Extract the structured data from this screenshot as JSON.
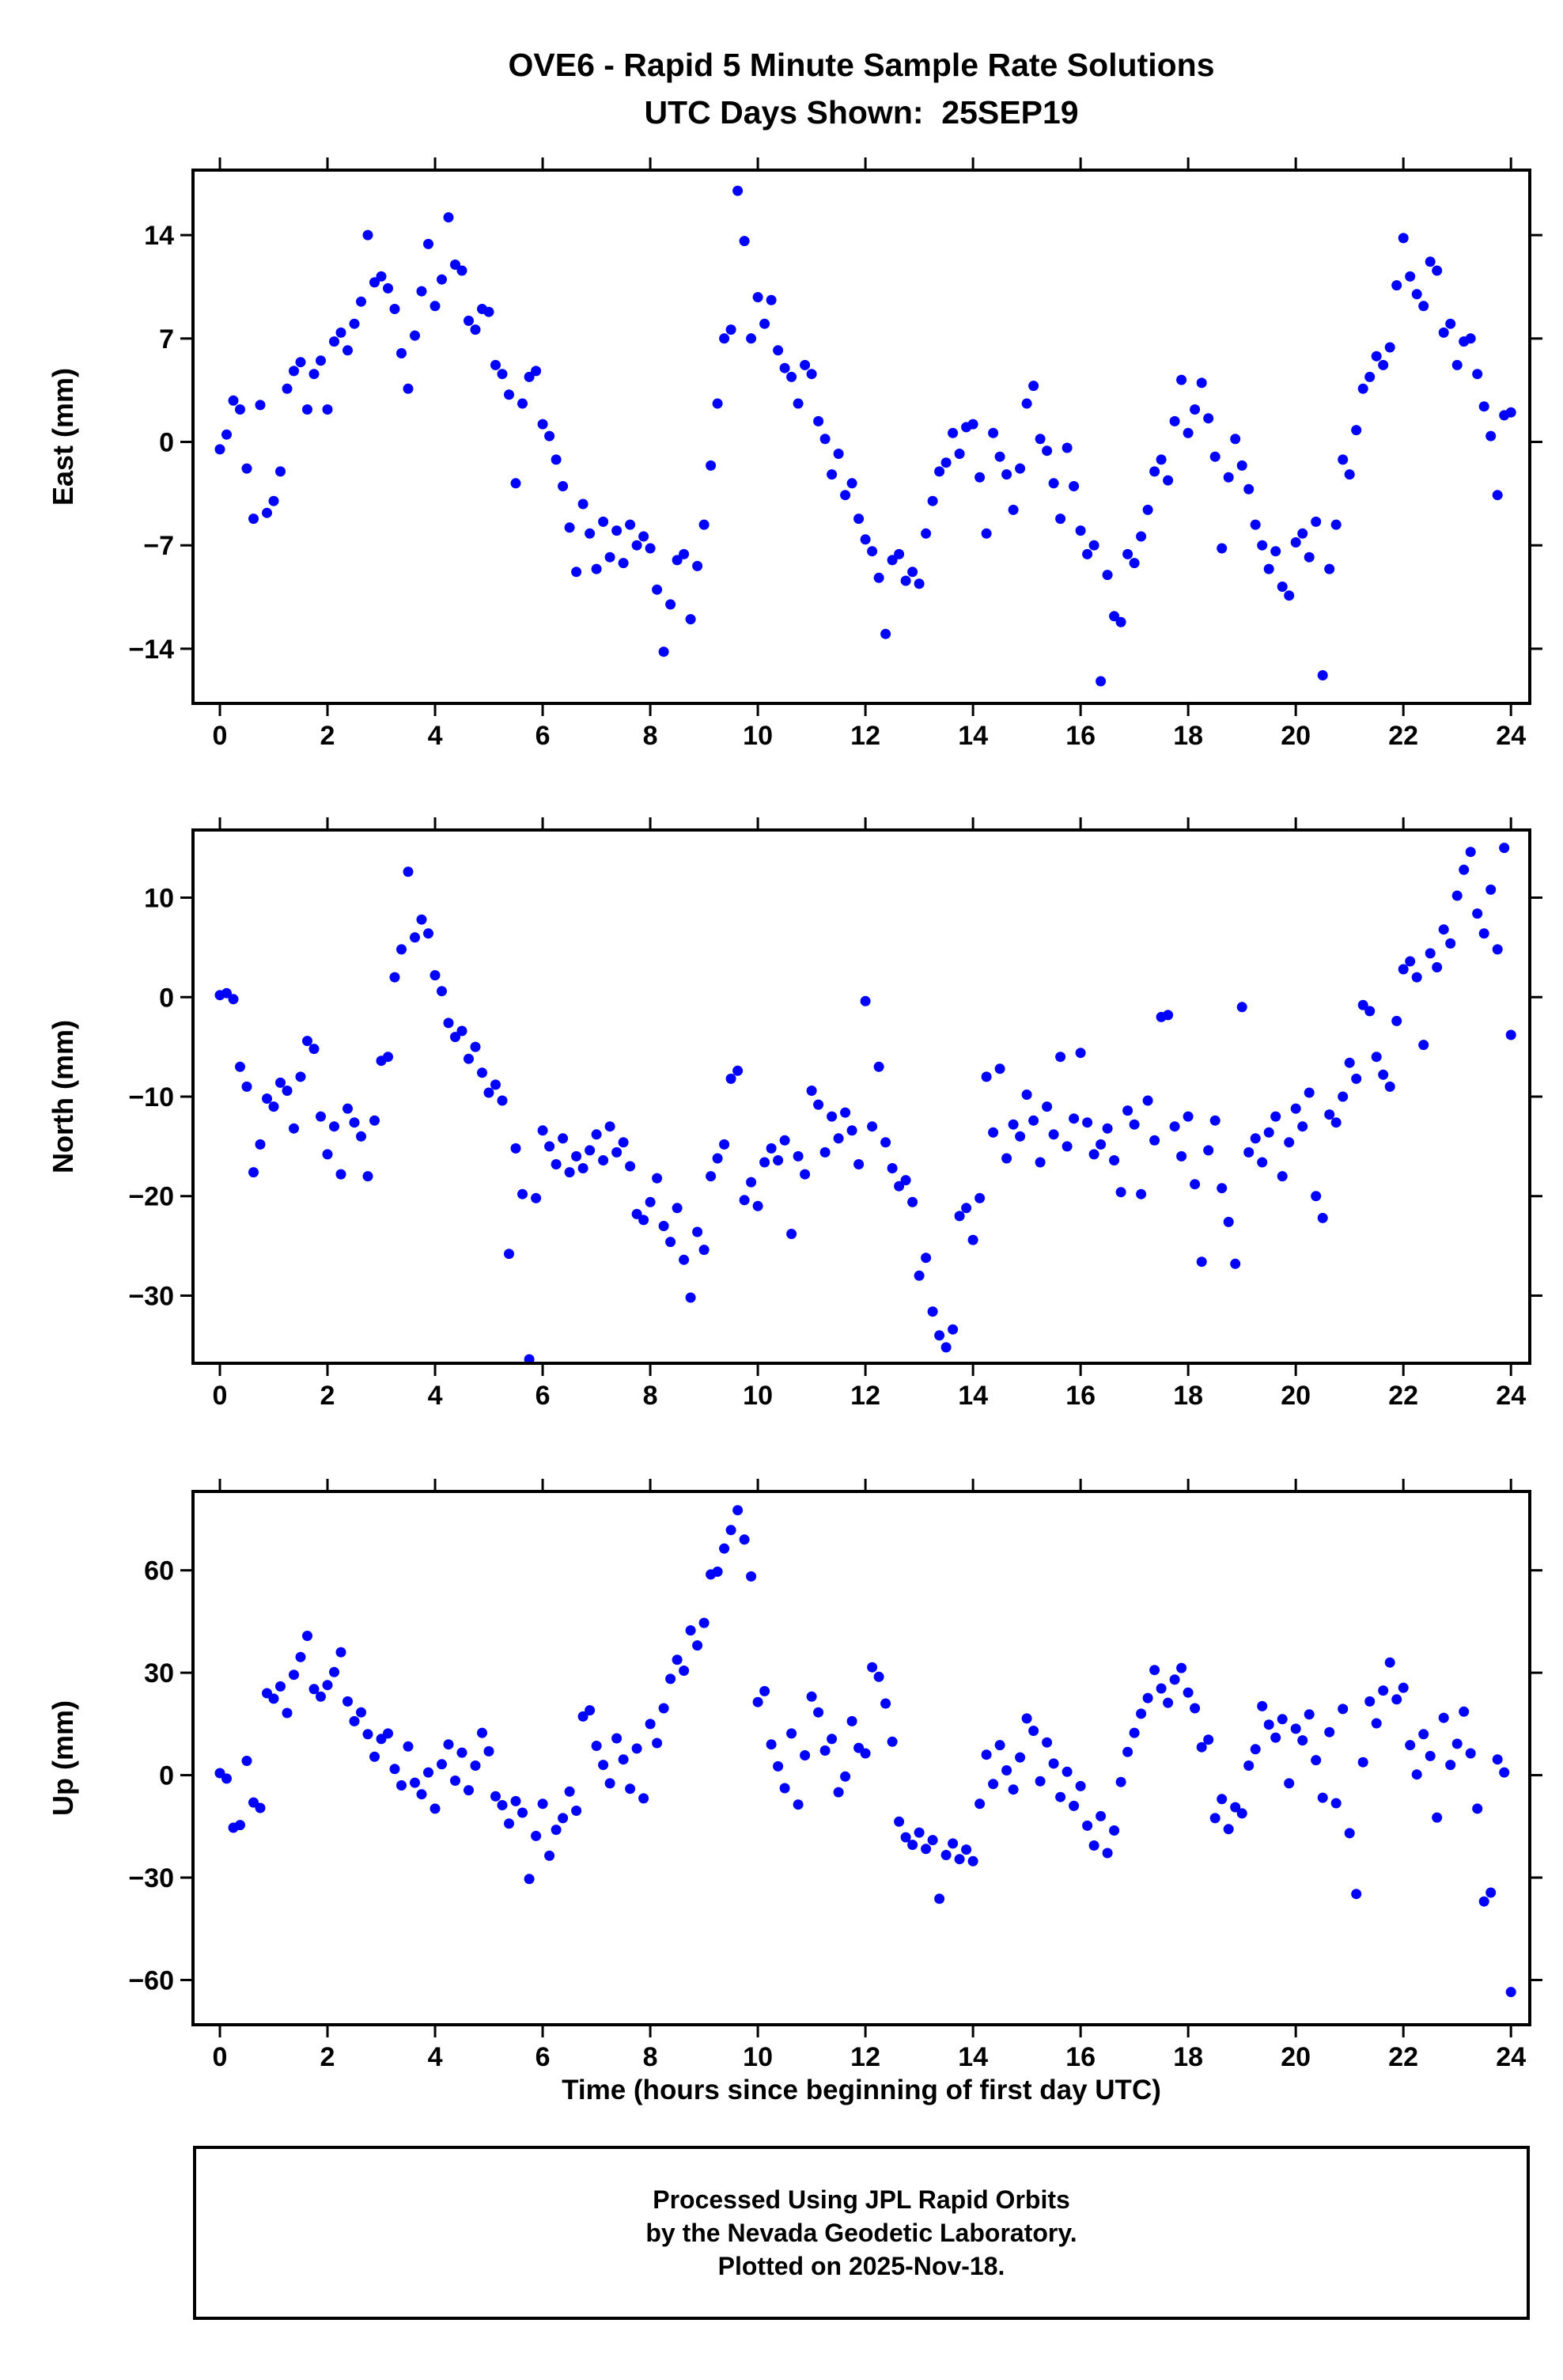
{
  "title_line1": "OVE6 - Rapid 5 Minute Sample Rate Solutions",
  "title_line2": "UTC Days Shown:  25SEP19",
  "xlabel": "Time (hours since beginning of first day UTC)",
  "footer": {
    "line1": "Processed Using JPL Rapid Orbits",
    "line2": "by the Nevada Geodetic Laboratory.",
    "line3": "Plotted on 2025-Nov-18."
  },
  "marker_color": "#0000ff",
  "chart_data": [
    {
      "type": "scatter",
      "id": "east",
      "ylabel": "East (mm)",
      "x_start": 0,
      "x_step": 0.125,
      "xlim": [
        -0.5,
        24.35
      ],
      "ylim": [
        -17.7,
        18.4
      ],
      "x_ticks": [
        0,
        2,
        4,
        6,
        8,
        10,
        12,
        14,
        16,
        18,
        20,
        22,
        24
      ],
      "y_ticks": [
        -14,
        -7,
        0,
        7,
        14
      ],
      "values": [
        -0.5,
        0.5,
        2.8,
        2.2,
        -1.8,
        -5.2,
        2.5,
        -4.8,
        -4.0,
        -2.0,
        3.6,
        4.8,
        5.4,
        2.2,
        4.6,
        5.5,
        2.2,
        6.8,
        7.4,
        6.2,
        8.0,
        9.5,
        14.0,
        10.8,
        11.2,
        10.4,
        9.0,
        6.0,
        3.6,
        7.2,
        10.2,
        13.4,
        9.2,
        11.0,
        15.2,
        12.0,
        11.6,
        8.2,
        7.6,
        9.0,
        8.8,
        5.2,
        4.6,
        3.2,
        -2.8,
        2.6,
        4.4,
        4.8,
        1.2,
        0.4,
        -1.2,
        -3.0,
        -5.8,
        -8.8,
        -4.2,
        -6.2,
        -8.6,
        -5.4,
        -7.8,
        -6.0,
        -8.2,
        -5.6,
        -7.0,
        -6.4,
        -7.2,
        -10.0,
        -14.2,
        -11.0,
        -8.0,
        -7.6,
        -12.0,
        -8.4,
        -5.6,
        -1.6,
        2.6,
        7.0,
        7.6,
        17.0,
        13.6,
        7.0,
        9.8,
        8.0,
        9.6,
        6.2,
        5.0,
        4.4,
        2.6,
        5.2,
        4.6,
        1.4,
        0.2,
        -2.2,
        -0.8,
        -3.6,
        -2.8,
        -5.2,
        -6.6,
        -7.4,
        -9.2,
        -13.0,
        -8.0,
        -7.6,
        -9.4,
        -8.8,
        -9.6,
        -6.2,
        -4.0,
        -2.0,
        -1.4,
        0.6,
        -0.8,
        1.0,
        1.2,
        -2.4,
        -6.2,
        0.6,
        -1.0,
        -2.2,
        -4.6,
        -1.8,
        2.6,
        3.8,
        0.2,
        -0.6,
        -2.8,
        -5.2,
        -0.4,
        -3.0,
        -6.0,
        -7.6,
        -7.0,
        -16.2,
        -9.0,
        -11.8,
        -12.2,
        -7.6,
        -8.2,
        -6.4,
        -4.6,
        -2.0,
        -1.2,
        -2.6,
        1.4,
        4.2,
        0.6,
        2.2,
        4.0,
        1.6,
        -1.0,
        -7.2,
        -2.4,
        0.2,
        -1.6,
        -3.2,
        -5.6,
        -7.0,
        -8.6,
        -7.4,
        -9.8,
        -10.4,
        -6.8,
        -6.2,
        -7.8,
        -5.4,
        -15.8,
        -8.6,
        -5.6,
        -1.2,
        -2.2,
        0.8,
        3.6,
        4.4,
        5.8,
        5.2,
        6.4,
        10.6,
        13.8,
        11.2,
        10.0,
        9.2,
        12.2,
        11.6,
        7.4,
        8.0,
        5.2,
        6.8,
        7.0,
        4.6,
        2.4,
        0.4,
        -3.6,
        1.8,
        2.0
      ]
    },
    {
      "type": "scatter",
      "id": "north",
      "ylabel": "North (mm)",
      "x_start": 0,
      "x_step": 0.125,
      "xlim": [
        -0.5,
        24.35
      ],
      "ylim": [
        -36.8,
        16.8
      ],
      "x_ticks": [
        0,
        2,
        4,
        6,
        8,
        10,
        12,
        14,
        16,
        18,
        20,
        22,
        24
      ],
      "y_ticks": [
        -30,
        -20,
        -10,
        0,
        10
      ],
      "values": [
        0.2,
        0.4,
        -0.2,
        -7.0,
        -9.0,
        -17.6,
        -14.8,
        -10.2,
        -11.0,
        -8.6,
        -9.4,
        -13.2,
        -8.0,
        -4.4,
        -5.2,
        -12.0,
        -15.8,
        -13.0,
        -17.8,
        -11.2,
        -12.6,
        -14.0,
        -18.0,
        -12.4,
        -6.4,
        -6.0,
        2.0,
        4.8,
        12.6,
        6.0,
        7.8,
        6.4,
        2.2,
        0.6,
        -2.6,
        -4.0,
        -3.4,
        -6.2,
        -5.0,
        -7.6,
        -9.6,
        -8.8,
        -10.4,
        -25.8,
        -15.2,
        -19.8,
        -36.4,
        -20.2,
        -13.4,
        -15.0,
        -16.8,
        -14.2,
        -17.6,
        -16.0,
        -17.2,
        -15.4,
        -13.8,
        -16.4,
        -13.0,
        -15.6,
        -14.6,
        -17.0,
        -21.8,
        -22.4,
        -20.6,
        -18.2,
        -23.0,
        -24.6,
        -21.2,
        -26.4,
        -30.2,
        -23.6,
        -25.4,
        -18.0,
        -16.2,
        -14.8,
        -8.2,
        -7.4,
        -20.4,
        -18.6,
        -21.0,
        -16.6,
        -15.2,
        -16.4,
        -14.4,
        -23.8,
        -16.0,
        -17.8,
        -9.4,
        -10.8,
        -15.6,
        -12.0,
        -14.2,
        -11.6,
        -13.4,
        -16.8,
        -0.4,
        -13.0,
        -7.0,
        -14.6,
        -17.2,
        -19.0,
        -18.4,
        -20.6,
        -28.0,
        -26.2,
        -31.6,
        -34.0,
        -35.2,
        -33.4,
        -22.0,
        -21.2,
        -24.4,
        -20.2,
        -8.0,
        -13.6,
        -7.2,
        -16.2,
        -12.8,
        -14.0,
        -9.8,
        -12.4,
        -16.6,
        -11.0,
        -13.8,
        -6.0,
        -15.0,
        -12.2,
        -5.6,
        -12.6,
        -15.8,
        -14.8,
        -13.2,
        -16.4,
        -19.6,
        -11.4,
        -12.8,
        -19.8,
        -10.4,
        -14.4,
        -2.0,
        -1.8,
        -13.0,
        -16.0,
        -12.0,
        -18.8,
        -26.6,
        -15.4,
        -12.4,
        -19.2,
        -22.6,
        -26.8,
        -1.0,
        -15.6,
        -14.2,
        -16.6,
        -13.6,
        -12.0,
        -18.0,
        -14.6,
        -11.2,
        -13.0,
        -9.6,
        -20.0,
        -22.2,
        -11.8,
        -12.6,
        -10.0,
        -6.6,
        -8.2,
        -0.8,
        -1.4,
        -6.0,
        -7.8,
        -9.0,
        -2.4,
        2.8,
        3.6,
        2.0,
        -4.8,
        4.4,
        3.0,
        6.8,
        5.4,
        10.2,
        12.8,
        14.6,
        8.4,
        6.4,
        10.8,
        4.8,
        15.0,
        -3.8
      ]
    },
    {
      "type": "scatter",
      "id": "up",
      "ylabel": "Up (mm)",
      "x_start": 0,
      "x_step": 0.125,
      "xlim": [
        -0.5,
        24.35
      ],
      "ylim": [
        -73.1,
        83.1
      ],
      "x_ticks": [
        0,
        2,
        4,
        6,
        8,
        10,
        12,
        14,
        16,
        18,
        20,
        22,
        24
      ],
      "y_ticks": [
        -60,
        -30,
        0,
        30,
        60
      ],
      "values": [
        0.6,
        -1.0,
        -15.4,
        -14.6,
        4.2,
        -8.0,
        -9.6,
        24.0,
        22.4,
        26.0,
        18.2,
        29.4,
        34.6,
        40.8,
        25.2,
        23.0,
        26.4,
        30.2,
        36.0,
        21.6,
        15.8,
        18.4,
        12.0,
        5.4,
        10.6,
        12.2,
        1.8,
        -3.0,
        8.4,
        -2.2,
        -5.6,
        0.8,
        -9.8,
        3.2,
        9.0,
        -1.6,
        6.6,
        -4.4,
        2.8,
        12.4,
        7.0,
        -6.2,
        -8.8,
        -14.2,
        -7.6,
        -11.0,
        -30.4,
        -17.8,
        -8.4,
        -23.6,
        -16.0,
        -12.6,
        -4.8,
        -10.4,
        17.2,
        19.0,
        8.6,
        3.0,
        -2.4,
        10.8,
        4.6,
        -4.0,
        7.8,
        -6.8,
        15.0,
        9.4,
        19.6,
        28.2,
        33.8,
        30.6,
        42.4,
        38.0,
        44.6,
        58.8,
        59.6,
        66.4,
        71.8,
        77.6,
        69.0,
        58.2,
        21.4,
        24.6,
        9.0,
        2.6,
        -3.8,
        12.2,
        -8.6,
        5.8,
        23.0,
        18.4,
        7.2,
        10.6,
        -5.0,
        -0.4,
        15.8,
        8.0,
        6.4,
        31.6,
        28.8,
        21.0,
        9.8,
        -13.6,
        -18.2,
        -20.4,
        -16.8,
        -21.6,
        -19.0,
        -36.2,
        -23.4,
        -20.0,
        -24.6,
        -21.8,
        -25.2,
        -8.4,
        6.0,
        -2.6,
        8.8,
        1.4,
        -4.2,
        5.2,
        16.6,
        13.0,
        -1.8,
        9.6,
        3.4,
        -6.4,
        1.0,
        -9.0,
        -3.2,
        -14.8,
        -20.6,
        -12.0,
        -22.8,
        -16.2,
        -2.0,
        6.8,
        12.4,
        18.0,
        22.6,
        30.8,
        25.4,
        21.2,
        28.0,
        31.4,
        24.2,
        19.6,
        8.2,
        10.4,
        -12.6,
        -7.0,
        -15.8,
        -9.4,
        -11.2,
        2.8,
        7.6,
        20.2,
        14.8,
        11.0,
        16.4,
        -2.4,
        13.6,
        10.2,
        17.8,
        4.4,
        -6.6,
        12.6,
        -8.2,
        19.4,
        -17.0,
        -34.8,
        3.8,
        21.6,
        15.2,
        24.8,
        33.0,
        22.2,
        25.6,
        8.8,
        0.2,
        12.0,
        5.6,
        -12.4,
        16.8,
        3.0,
        9.2,
        18.6,
        6.4,
        -9.8,
        -37.0,
        -34.4,
        4.6,
        0.8,
        -63.5
      ]
    }
  ]
}
